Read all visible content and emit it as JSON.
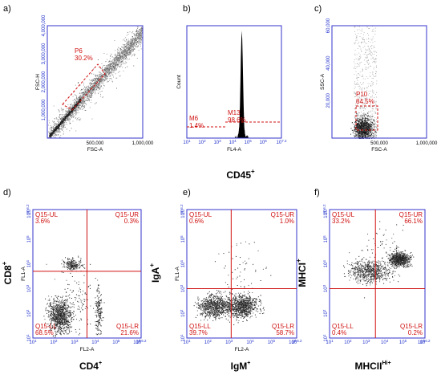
{
  "chart_data": [
    {
      "id": "a",
      "panel_label": "a)",
      "type": "scatter",
      "xlabel": "FSC-A",
      "ylabel": "FSC-H",
      "xlim": [
        0,
        1000000
      ],
      "ylim": [
        0,
        4000000
      ],
      "xticks": [
        "500,000",
        "1,000,000"
      ],
      "yticks": [
        "1,000,000",
        "2,000,000",
        "3,000,000",
        "4,000,000"
      ],
      "gate": {
        "name": "P6",
        "percent": "30.2%"
      }
    },
    {
      "id": "b",
      "panel_label": "b)",
      "type": "histogram",
      "xlabel": "FL4-A",
      "ylabel": "Count",
      "xticks": [
        "10^1",
        "10^2",
        "10^3",
        "10^4",
        "10^5",
        "10^6",
        "10^7.2"
      ],
      "peak_at_log10": 4.6,
      "gates": [
        {
          "name": "M6",
          "percent": "1.4%"
        },
        {
          "name": "M13",
          "percent": "98.6%"
        }
      ]
    },
    {
      "id": "c",
      "panel_label": "c)",
      "type": "scatter",
      "xlabel": "FSC-A",
      "ylabel": "SSC-A",
      "xlim": [
        0,
        1000000
      ],
      "ylim": [
        0,
        60000
      ],
      "xticks": [
        "500,000",
        "1,000,000"
      ],
      "yticks": [
        "20,000",
        "40,000",
        "60,000"
      ],
      "gate": {
        "name": "P10",
        "percent": "84.5%"
      }
    },
    {
      "id": "d",
      "panel_label": "d)",
      "type": "scatter",
      "xlabel": "FL2-A",
      "ylabel": "FL1-A",
      "xticks": [
        "10^1",
        "10^2",
        "10^3",
        "10^4",
        "10^5",
        "10^6",
        "10^6.2"
      ],
      "yticks": [
        "10^1",
        "10^2",
        "10^3",
        "10^4",
        "10^5",
        "10^6",
        "10^6.2"
      ],
      "quadrants": [
        {
          "name": "Q15-UL",
          "percent": "3.6%"
        },
        {
          "name": "Q15-UR",
          "percent": "0.3%"
        },
        {
          "name": "Q15-LL",
          "percent": "68.5%"
        },
        {
          "name": "Q15-LR",
          "percent": "21.6%"
        }
      ],
      "big_x": "CD4",
      "big_y": "CD8",
      "sup": "+"
    },
    {
      "id": "e",
      "panel_label": "e)",
      "type": "scatter",
      "xlabel": "FL2-A",
      "ylabel": "FL1-A",
      "xticks": [
        "10^1",
        "10^2",
        "10^3",
        "10^4",
        "10^5",
        "10^6",
        "10^6.2"
      ],
      "yticks": [
        "10^1",
        "10^2",
        "10^3",
        "10^4",
        "10^5",
        "10^6",
        "10^6.2"
      ],
      "quadrants": [
        {
          "name": "Q15-UL",
          "percent": "0.6%"
        },
        {
          "name": "Q15-UR",
          "percent": "1.0%"
        },
        {
          "name": "Q15-LL",
          "percent": "39.7%"
        },
        {
          "name": "Q15-LR",
          "percent": "58.7%"
        }
      ],
      "big_x": "IgM",
      "big_y": "IgA",
      "sup": "+"
    },
    {
      "id": "f",
      "panel_label": "f)",
      "type": "scatter",
      "xlabel": "",
      "ylabel": "",
      "xticks": [
        "10^1",
        "10^2",
        "10^3",
        "10^4",
        "10^5",
        "10^6",
        "10^6.2"
      ],
      "yticks": [
        "10^1",
        "10^2",
        "10^3",
        "10^4",
        "10^5",
        "10^6",
        "10^6.2"
      ],
      "quadrants": [
        {
          "name": "Q15-UL",
          "percent": "33.2%"
        },
        {
          "name": "Q15-UR",
          "percent": "66.1%"
        },
        {
          "name": "Q15-LL",
          "percent": "0.4%"
        },
        {
          "name": "Q15-LR",
          "percent": "0.2%"
        }
      ],
      "big_x": "MHCII",
      "big_x_sup": "Hi+",
      "big_y": "MHCI",
      "sup": "+"
    }
  ],
  "middle_label": {
    "text": "CD45",
    "sup": "+"
  },
  "colors": {
    "axis": "#3333cc",
    "gate": "#d01010",
    "dots": "#3a3a3a"
  }
}
